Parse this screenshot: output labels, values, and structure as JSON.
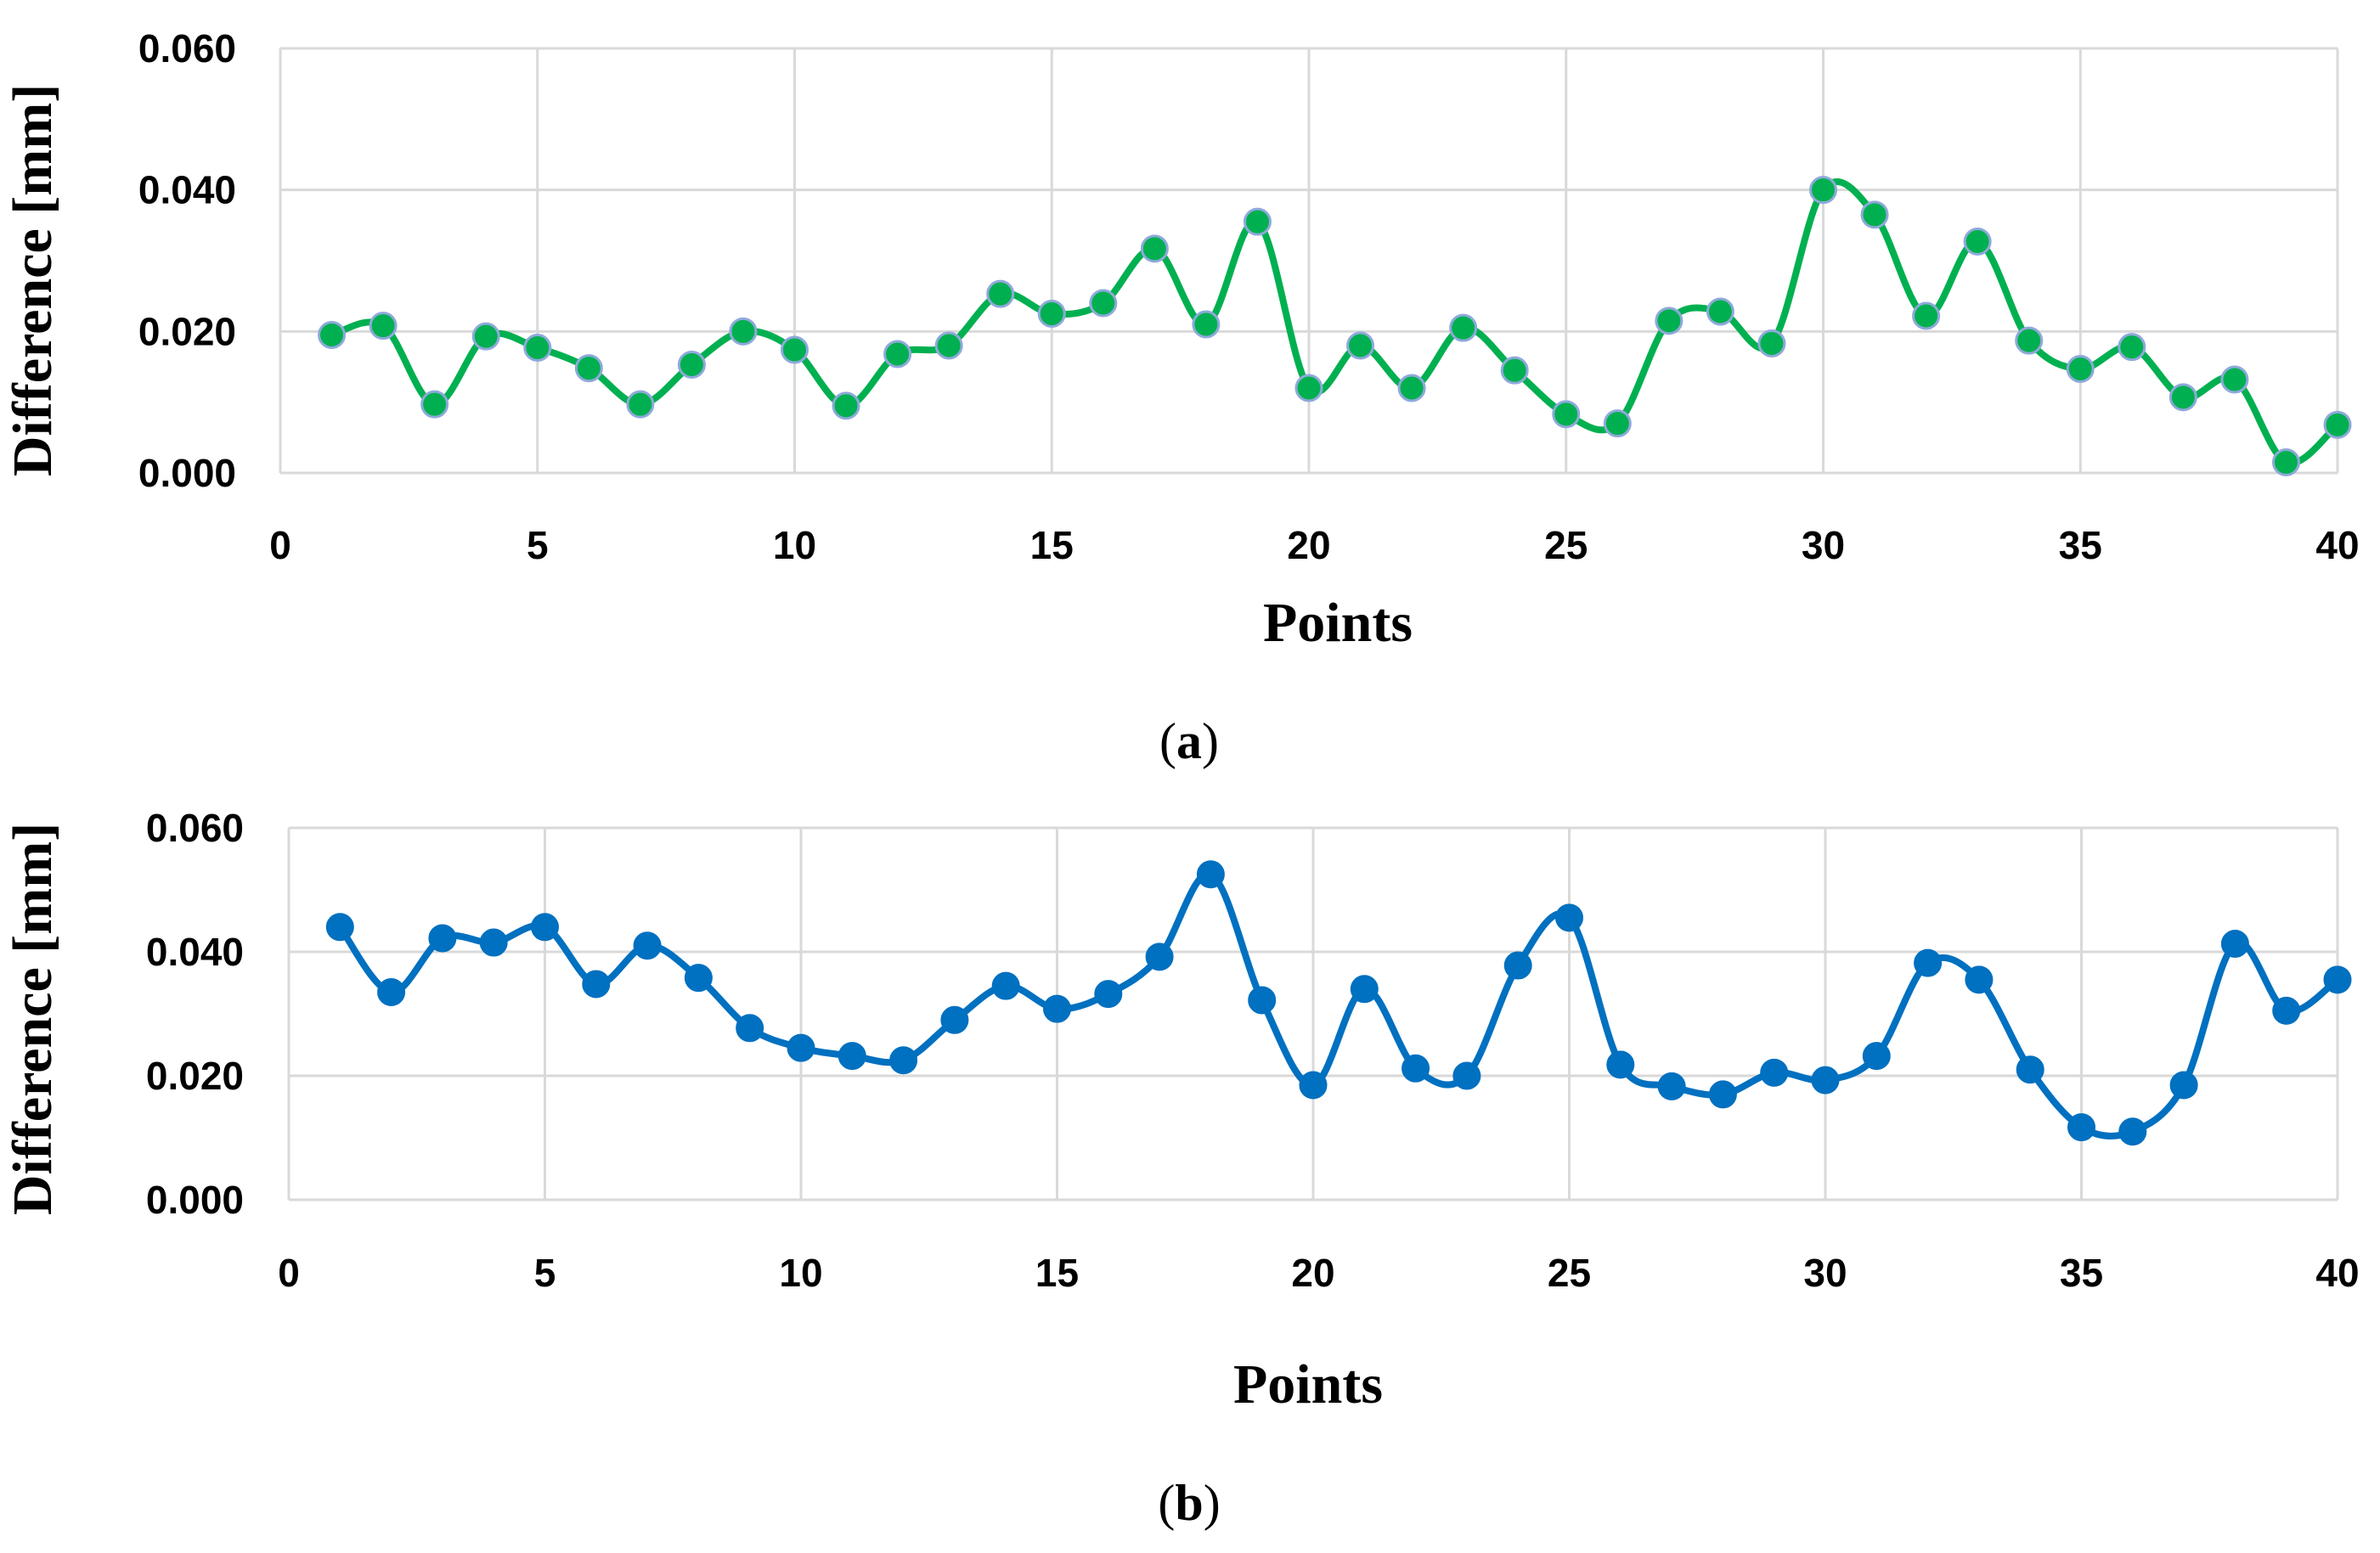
{
  "chart_data": [
    {
      "type": "line",
      "panel_label": "a",
      "xlabel": "Points",
      "ylabel": "Difference [mm]",
      "xlim": [
        0,
        40
      ],
      "ylim": [
        0,
        0.06
      ],
      "x_ticks": [
        "0",
        "5",
        "10",
        "15",
        "20",
        "25",
        "30",
        "35",
        "40"
      ],
      "y_ticks": [
        "0.000",
        "0.020",
        "0.040",
        "0.060"
      ],
      "grid": true,
      "line_color": "#00b050",
      "marker_edge_color": "#8fa9db",
      "smooth": true,
      "series": [
        {
          "x": [
            1,
            2,
            3,
            4,
            5,
            6,
            7,
            8,
            9,
            10,
            11,
            12,
            13,
            14,
            15,
            16,
            17,
            18,
            19,
            20,
            21,
            22,
            23,
            24,
            25,
            26,
            27,
            28,
            29,
            30,
            31,
            32,
            33,
            34,
            35,
            36,
            37,
            38,
            39,
            40
          ],
          "values": [
            0.0195,
            0.0208,
            0.0097,
            0.0193,
            0.0177,
            0.0148,
            0.0097,
            0.0153,
            0.02,
            0.0174,
            0.0095,
            0.0168,
            0.018,
            0.0253,
            0.0225,
            0.024,
            0.0317,
            0.021,
            0.0355,
            0.012,
            0.018,
            0.012,
            0.0205,
            0.0145,
            0.0083,
            0.007,
            0.0215,
            0.0228,
            0.0183,
            0.04,
            0.0365,
            0.0222,
            0.0327,
            0.0187,
            0.0147,
            0.0178,
            0.0107,
            0.0132,
            0.0015,
            0.0068
          ]
        }
      ]
    },
    {
      "type": "line",
      "panel_label": "b",
      "xlabel": "Points",
      "ylabel": "Difference [mm]",
      "xlim": [
        0,
        40
      ],
      "ylim": [
        0,
        0.06
      ],
      "x_ticks": [
        "0",
        "5",
        "10",
        "15",
        "20",
        "25",
        "30",
        "35",
        "40"
      ],
      "y_ticks": [
        "0.000",
        "0.020",
        "0.040",
        "0.060"
      ],
      "grid": true,
      "line_color": "#0070c0",
      "marker_edge_color": "#0070c0",
      "smooth": true,
      "series": [
        {
          "x": [
            1,
            2,
            3,
            4,
            5,
            6,
            7,
            8,
            9,
            10,
            11,
            12,
            13,
            14,
            15,
            16,
            17,
            18,
            19,
            20,
            21,
            22,
            23,
            24,
            25,
            26,
            27,
            28,
            29,
            30,
            31,
            32,
            33,
            34,
            35,
            36,
            37,
            38,
            39,
            40
          ],
          "values": [
            0.044,
            0.0335,
            0.0422,
            0.0415,
            0.044,
            0.0348,
            0.041,
            0.0358,
            0.0277,
            0.0245,
            0.0232,
            0.0225,
            0.029,
            0.0345,
            0.0308,
            0.0332,
            0.0392,
            0.0525,
            0.0322,
            0.0185,
            0.034,
            0.0212,
            0.02,
            0.0378,
            0.0455,
            0.0218,
            0.0183,
            0.017,
            0.0205,
            0.0193,
            0.0232,
            0.0382,
            0.0355,
            0.021,
            0.0117,
            0.011,
            0.0185,
            0.0413,
            0.0305,
            0.0355
          ]
        }
      ]
    }
  ]
}
